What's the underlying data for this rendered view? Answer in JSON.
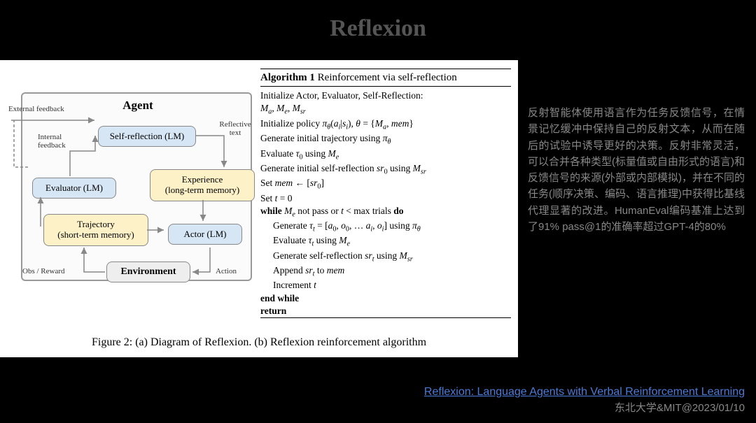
{
  "title": "Reflexion",
  "diagram": {
    "agent_label": "Agent",
    "self_reflection": "Self-reflection (LM)",
    "evaluator": "Evaluator (LM)",
    "experience": "Experience\n(long-term memory)",
    "trajectory": "Trajectory\n(short-term memory)",
    "actor": "Actor (LM)",
    "environment": "Environment",
    "external_feedback": "External feedback",
    "internal_feedback": "Internal\nfeedback",
    "reflective_text": "Reflective\ntext",
    "obs_reward": "Obs / Reward",
    "action": "Action",
    "colors": {
      "lm_fill": "#d6e6f5",
      "mem_fill": "#fdf2c7",
      "env_fill": "#eeeeee",
      "border": "#888888",
      "agent_border": "#999999",
      "arrow": "#888888"
    }
  },
  "algorithm": {
    "header_num": "Algorithm 1",
    "header_title": " Reinforcement via self-reflection",
    "lines": [
      {
        "t": "Initialize Actor, Evaluator, Self-Reflection:",
        "i": 0
      },
      {
        "t": "<span class='ital'>M<sub>a</sub></span>, <span class='ital'>M<sub>e</sub></span>, <span class='ital'>M<sub>sr</sub></span>",
        "i": 0
      },
      {
        "t": "Initialize policy <span class='ital'>π<sub>θ</sub></span>(<span class='ital'>a<sub>i</sub></span>|<span class='ital'>s<sub>i</sub></span>), <span class='ital'>θ</span> = {<span class='ital'>M<sub>a</sub></span>, <span class='ital'>mem</span>}",
        "i": 0
      },
      {
        "t": "Generate initial trajectory using <span class='ital'>π<sub>θ</sub></span>",
        "i": 0
      },
      {
        "t": "Evaluate <span class='ital'>τ</span><sub>0</sub> using <span class='ital'>M<sub>e</sub></span>",
        "i": 0
      },
      {
        "t": "Generate initial self-reflection <span class='ital'>sr</span><sub>0</sub> using <span class='ital'>M<sub>sr</sub></span>",
        "i": 0
      },
      {
        "t": "Set <span class='ital'>mem</span> ← [<span class='ital'>sr</span><sub>0</sub>]",
        "i": 0
      },
      {
        "t": "Set <span class='ital'>t</span> = 0",
        "i": 0
      },
      {
        "t": "<b>while</b> <span class='ital'>M<sub>e</sub></span> not pass or <span class='ital'>t</span> &lt; max trials <b>do</b>",
        "i": 0
      },
      {
        "t": "Generate <span class='ital'>τ<sub>t</sub></span> = [<span class='ital'>a</span><sub>0</sub>, <span class='ital'>o</span><sub>0</sub>, … <span class='ital'>a<sub>i</sub></span>, <span class='ital'>o<sub>i</sub></span>] using <span class='ital'>π<sub>θ</sub></span>",
        "i": 1
      },
      {
        "t": "Evaluate <span class='ital'>τ<sub>t</sub></span> using <span class='ital'>M<sub>e</sub></span>",
        "i": 1
      },
      {
        "t": "Generate self-reflection <span class='ital'>sr<sub>t</sub></span> using <span class='ital'>M<sub>sr</sub></span>",
        "i": 1
      },
      {
        "t": "Append <span class='ital'>sr<sub>t</sub></span> to <span class='ital'>mem</span>",
        "i": 1
      },
      {
        "t": "Increment <span class='ital'>t</span>",
        "i": 1
      },
      {
        "t": "<b>end while</b>",
        "i": 0
      },
      {
        "t": "<b>return</b>",
        "i": 0
      }
    ]
  },
  "caption": "Figure 2: (a) Diagram of Reflexion. (b) Reflexion reinforcement algorithm",
  "sidebar": "反射智能体使用语言作为任务反馈信号，在情景记忆缓冲中保持自己的反射文本，从而在随后的试验中诱导更好的决策。反射非常灵活，可以合并各种类型(标量值或自由形式的语言)和反馈信号的来源(外部或内部模拟)，并在不同的任务(顺序决策、编码、语言推理)中获得比基线代理显著的改进。HumanEval编码基准上达到了91% pass@1的准确率超过GPT-4的80%",
  "footer": {
    "link_text": "Reflexion: Language Agents with Verbal Reinforcement Learning",
    "source": "东北大学&MIT@2023/01/10"
  }
}
